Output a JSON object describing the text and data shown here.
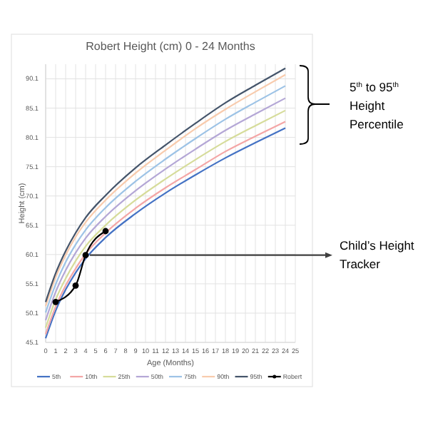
{
  "chart_data": {
    "type": "line",
    "title": "Robert Height (cm) 0 - 24 Months",
    "xlabel": "Age (Months)",
    "ylabel": "Height (cm)",
    "x": [
      0,
      1,
      2,
      3,
      4,
      6,
      9,
      12,
      15,
      18,
      21,
      24
    ],
    "series": [
      {
        "name": "5th",
        "color": "#4472c4",
        "values": [
          45.8,
          50.5,
          54.1,
          57.0,
          59.4,
          63.0,
          67.1,
          70.6,
          73.7,
          76.6,
          79.2,
          81.7
        ]
      },
      {
        "name": "10th",
        "color": "#f4a6a6",
        "values": [
          46.5,
          51.2,
          54.8,
          57.7,
          60.2,
          63.8,
          68.0,
          71.5,
          74.6,
          77.7,
          80.3,
          82.8
        ]
      },
      {
        "name": "25th",
        "color": "#d6dc9a",
        "values": [
          47.6,
          52.4,
          56.0,
          59.0,
          61.5,
          65.1,
          69.4,
          73.0,
          76.3,
          79.4,
          82.1,
          84.7
        ]
      },
      {
        "name": "50th",
        "color": "#b4a7d6",
        "values": [
          48.9,
          53.7,
          57.4,
          60.4,
          62.9,
          66.6,
          71.0,
          74.7,
          78.1,
          81.3,
          84.1,
          86.8
        ]
      },
      {
        "name": "75th",
        "color": "#9dc3e6",
        "values": [
          50.2,
          55.0,
          58.8,
          61.8,
          64.3,
          68.1,
          72.6,
          76.4,
          79.9,
          83.2,
          86.1,
          88.9
        ]
      },
      {
        "name": "90th",
        "color": "#f8cbad",
        "values": [
          51.3,
          56.2,
          60.0,
          63.1,
          65.6,
          69.4,
          74.0,
          77.9,
          81.6,
          84.9,
          87.9,
          90.8
        ]
      },
      {
        "name": "95th",
        "color": "#44546a",
        "values": [
          52.0,
          56.9,
          60.7,
          63.8,
          66.4,
          70.2,
          74.9,
          78.8,
          82.5,
          86.0,
          89.0,
          91.9
        ]
      },
      {
        "name": "Robert",
        "color": "#000000",
        "x": [
          1,
          3,
          4,
          6
        ],
        "values": [
          52.0,
          54.8,
          60.0,
          64.1
        ],
        "marker": "circle"
      }
    ],
    "xlim": [
      0,
      25
    ],
    "xticks": [
      0,
      1,
      2,
      3,
      4,
      5,
      6,
      7,
      8,
      9,
      10,
      11,
      12,
      13,
      14,
      15,
      16,
      17,
      18,
      19,
      20,
      21,
      22,
      23,
      24,
      25
    ],
    "ylim": [
      45.1,
      92.6
    ],
    "yticks": [
      45.1,
      50.1,
      55.1,
      60.1,
      65.1,
      70.1,
      75.1,
      80.1,
      85.1,
      90.1
    ],
    "grid": true,
    "legend": "bottom",
    "annotations": [
      "5$^{th}$ to 95$^{th}$ Height Percentile",
      "Child’s Height Tracker"
    ]
  }
}
